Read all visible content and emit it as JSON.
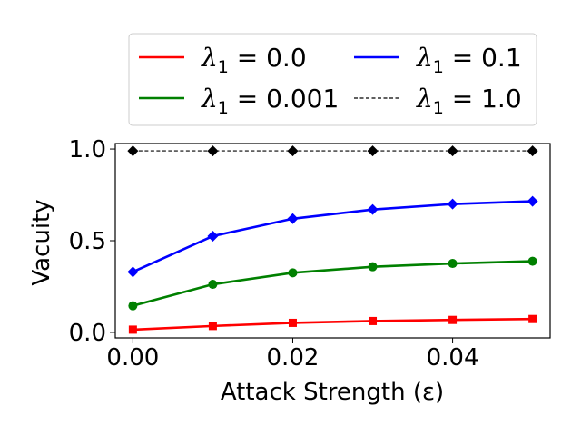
{
  "chart_data": {
    "type": "line",
    "xlabel": "Attack Strength (ε)",
    "ylabel": "Vacuity",
    "x": [
      0.0,
      0.01,
      0.02,
      0.03,
      0.04,
      0.05
    ],
    "xticks": [
      "0.00",
      "0.02",
      "0.04"
    ],
    "xtick_values": [
      0.0,
      0.02,
      0.04
    ],
    "yticks": [
      "0.0",
      "0.5",
      "1.0"
    ],
    "ytick_values": [
      0.0,
      0.5,
      1.0
    ],
    "xlim": [
      -0.0022,
      0.0522
    ],
    "ylim": [
      -0.03,
      1.03
    ],
    "grid": false,
    "legend_placement": "top (outside axes), 2 columns",
    "series": [
      {
        "name": "λ₁ = 0.0",
        "legend_main": "λ",
        "legend_sub": "1",
        "legend_rest": " = 0.0",
        "color": "#ff0000",
        "marker": "square",
        "linestyle": "solid",
        "values": [
          0.015,
          0.035,
          0.052,
          0.062,
          0.068,
          0.073
        ]
      },
      {
        "name": "λ₁ = 0.001",
        "legend_main": "λ",
        "legend_sub": "1",
        "legend_rest": " = 0.001",
        "color": "#008000",
        "marker": "circle",
        "linestyle": "solid",
        "values": [
          0.145,
          0.262,
          0.325,
          0.358,
          0.376,
          0.388
        ]
      },
      {
        "name": "λ₁ = 0.1",
        "legend_main": "λ",
        "legend_sub": "1",
        "legend_rest": " = 0.1",
        "color": "#0000ff",
        "marker": "diamond",
        "linestyle": "solid",
        "values": [
          0.33,
          0.525,
          0.62,
          0.67,
          0.7,
          0.715
        ]
      },
      {
        "name": "λ₁ = 1.0",
        "legend_main": "λ",
        "legend_sub": "1",
        "legend_rest": " = 1.0",
        "color": "#000000",
        "marker": "diamond",
        "linestyle": "dashed",
        "values": [
          0.99,
          0.99,
          0.99,
          0.99,
          0.99,
          0.99
        ]
      }
    ]
  }
}
